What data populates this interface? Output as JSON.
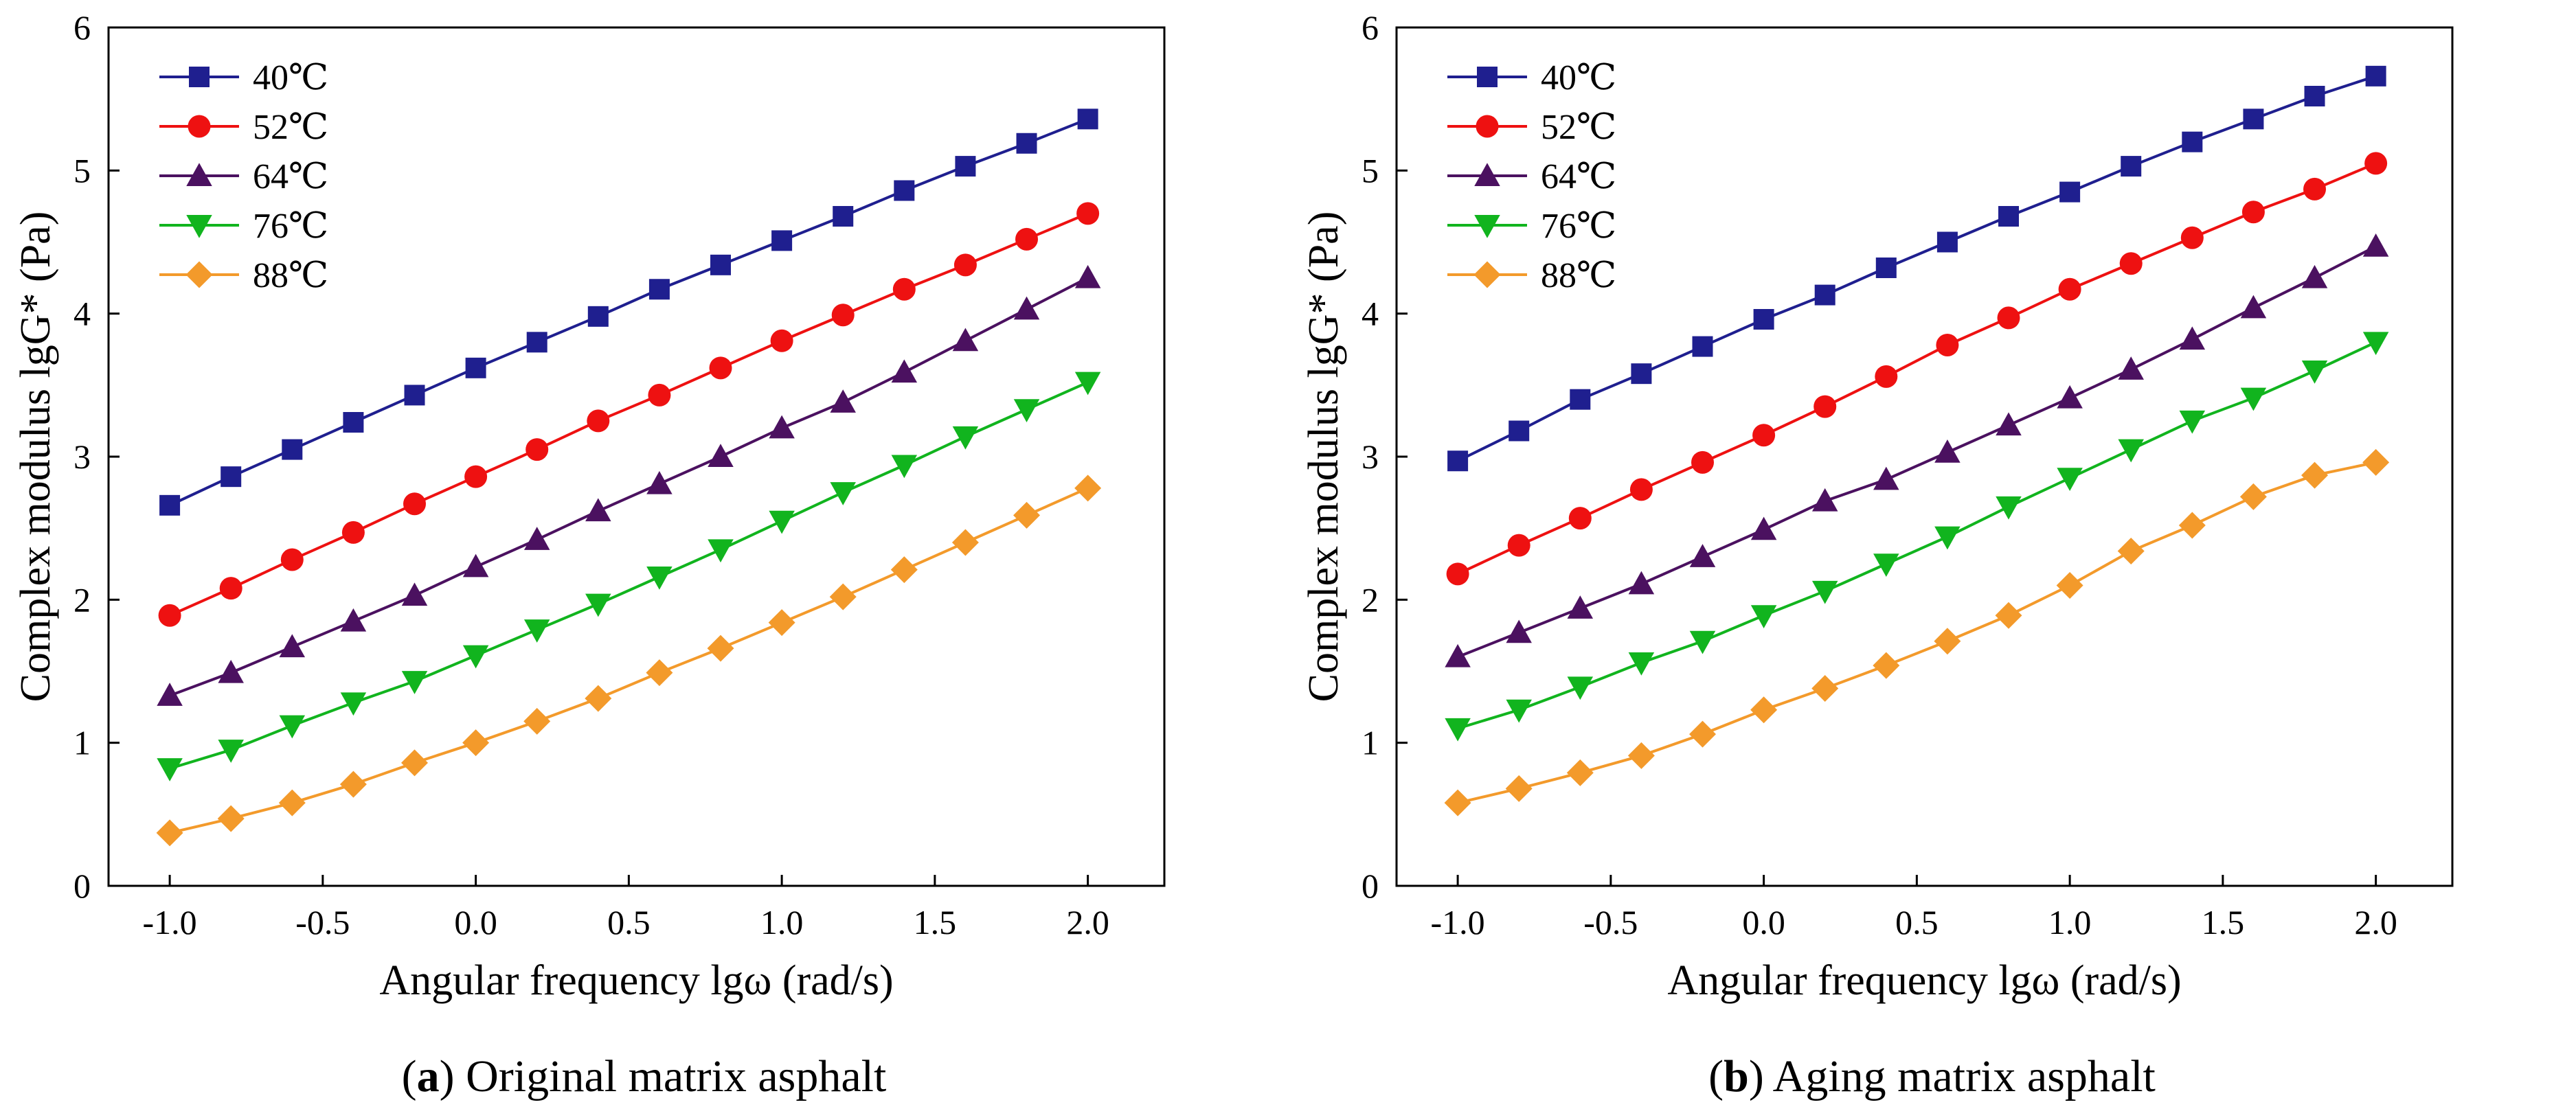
{
  "chart_data": [
    {
      "type": "line",
      "ylabel": "Complex modulus lgG* (Pa)",
      "xlabel": "Angular frequency lgω (rad/s)",
      "caption": {
        "label": "a",
        "text": ") Original matrix asphalt"
      },
      "xlim": [
        -1.2,
        2.25
      ],
      "ylim": [
        0,
        6
      ],
      "xticks": [
        "-1.0",
        "-0.5",
        "0.0",
        "0.5",
        "1.0",
        "1.5",
        "2.0"
      ],
      "yticks": [
        "0",
        "1",
        "2",
        "3",
        "4",
        "5",
        "6"
      ],
      "grid": false,
      "legend_position": "top-left",
      "x": [
        -1.0,
        -0.8,
        -0.6,
        -0.4,
        -0.2,
        0.0,
        0.2,
        0.4,
        0.6,
        0.8,
        1.0,
        1.2,
        1.4,
        1.6,
        1.8,
        2.0
      ],
      "series": [
        {
          "name": "40℃",
          "color": "#1f1f8f",
          "marker": "square",
          "values": [
            2.66,
            2.86,
            3.05,
            3.24,
            3.43,
            3.62,
            3.8,
            3.98,
            4.17,
            4.34,
            4.51,
            4.68,
            4.86,
            5.03,
            5.19,
            5.36
          ]
        },
        {
          "name": "52℃",
          "color": "#ee1111",
          "marker": "circle",
          "values": [
            1.89,
            2.08,
            2.28,
            2.47,
            2.67,
            2.86,
            3.05,
            3.25,
            3.43,
            3.62,
            3.81,
            3.99,
            4.17,
            4.34,
            4.52,
            4.7
          ]
        },
        {
          "name": "64℃",
          "color": "#4b1160",
          "marker": "triangle-up",
          "values": [
            1.33,
            1.49,
            1.67,
            1.85,
            2.03,
            2.23,
            2.42,
            2.62,
            2.81,
            3.0,
            3.2,
            3.38,
            3.59,
            3.81,
            4.03,
            4.25
          ]
        },
        {
          "name": "76℃",
          "color": "#11b41e",
          "marker": "triangle-down",
          "values": [
            0.82,
            0.95,
            1.12,
            1.28,
            1.43,
            1.61,
            1.79,
            1.97,
            2.16,
            2.35,
            2.55,
            2.75,
            2.94,
            3.14,
            3.33,
            3.52
          ]
        },
        {
          "name": "88℃",
          "color": "#f39a2b",
          "marker": "diamond",
          "values": [
            0.37,
            0.47,
            0.58,
            0.71,
            0.86,
            1.0,
            1.15,
            1.31,
            1.49,
            1.66,
            1.84,
            2.02,
            2.21,
            2.4,
            2.59,
            2.78
          ]
        }
      ]
    },
    {
      "type": "line",
      "ylabel": "Complex modulus lgG* (Pa)",
      "xlabel": "Angular frequency lgω (rad/s)",
      "caption": {
        "label": "b",
        "text": ") Aging matrix asphalt"
      },
      "xlim": [
        -1.2,
        2.25
      ],
      "ylim": [
        0,
        6
      ],
      "xticks": [
        "-1.0",
        "-0.5",
        "0.0",
        "0.5",
        "1.0",
        "1.5",
        "2.0"
      ],
      "yticks": [
        "0",
        "1",
        "2",
        "3",
        "4",
        "5",
        "6"
      ],
      "grid": false,
      "legend_position": "top-left",
      "x": [
        -1.0,
        -0.8,
        -0.6,
        -0.4,
        -0.2,
        0.0,
        0.2,
        0.4,
        0.6,
        0.8,
        1.0,
        1.2,
        1.4,
        1.6,
        1.8,
        2.0
      ],
      "series": [
        {
          "name": "40℃",
          "color": "#1f1f8f",
          "marker": "square",
          "values": [
            2.97,
            3.18,
            3.4,
            3.58,
            3.77,
            3.96,
            4.13,
            4.32,
            4.5,
            4.68,
            4.85,
            5.03,
            5.2,
            5.36,
            5.52,
            5.66
          ]
        },
        {
          "name": "52℃",
          "color": "#ee1111",
          "marker": "circle",
          "values": [
            2.18,
            2.38,
            2.57,
            2.77,
            2.96,
            3.15,
            3.35,
            3.56,
            3.78,
            3.97,
            4.17,
            4.35,
            4.53,
            4.71,
            4.87,
            5.05
          ]
        },
        {
          "name": "64℃",
          "color": "#4b1160",
          "marker": "triangle-up",
          "values": [
            1.6,
            1.77,
            1.94,
            2.11,
            2.3,
            2.49,
            2.69,
            2.84,
            3.03,
            3.22,
            3.41,
            3.61,
            3.82,
            4.04,
            4.25,
            4.47
          ]
        },
        {
          "name": "76℃",
          "color": "#11b41e",
          "marker": "triangle-down",
          "values": [
            1.1,
            1.23,
            1.39,
            1.56,
            1.71,
            1.89,
            2.06,
            2.25,
            2.44,
            2.65,
            2.85,
            3.05,
            3.25,
            3.41,
            3.6,
            3.8
          ]
        },
        {
          "name": "88℃",
          "color": "#f39a2b",
          "marker": "diamond",
          "values": [
            0.58,
            0.68,
            0.79,
            0.91,
            1.06,
            1.23,
            1.38,
            1.54,
            1.71,
            1.89,
            2.1,
            2.34,
            2.52,
            2.72,
            2.87,
            2.96
          ]
        }
      ]
    }
  ]
}
